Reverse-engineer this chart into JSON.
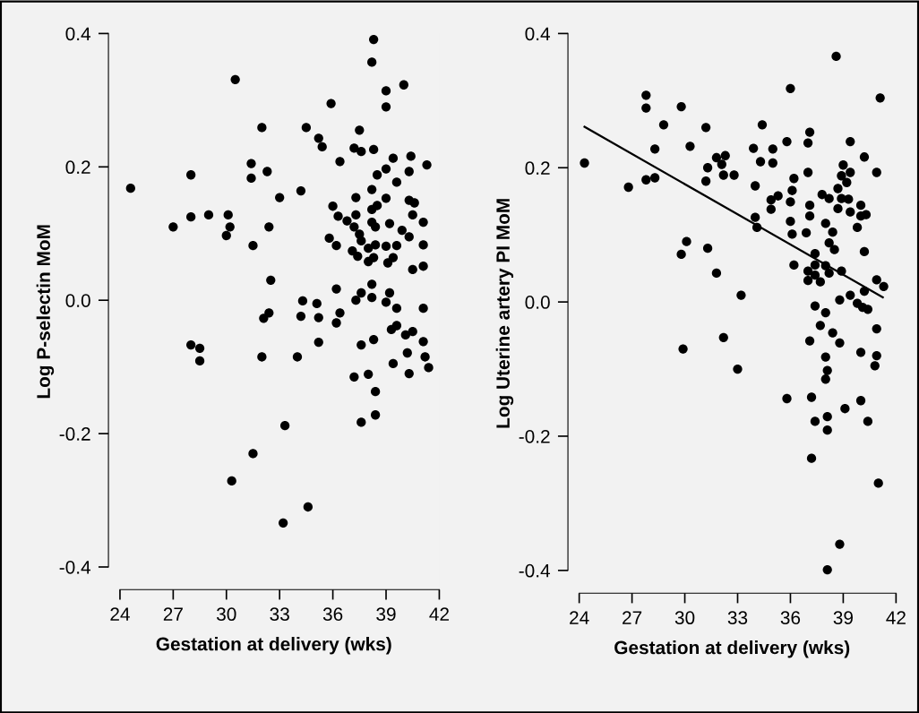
{
  "chart_data": [
    {
      "type": "scatter",
      "xlabel": "Gestation at delivery (wks)",
      "ylabel": "Log P-selectin MoM",
      "marker": "circle",
      "grid": false,
      "xlim": [
        23.35,
        42
      ],
      "ylim": [
        -0.434,
        0.4
      ],
      "xticks": [
        24,
        27,
        30,
        33,
        36,
        39,
        42
      ],
      "yticks": [
        {
          "value": -0.4,
          "label": "-0.4"
        },
        {
          "value": -0.2,
          "label": "-0.2"
        },
        {
          "value": 0,
          "label": "0.0"
        },
        {
          "value": 0.2,
          "label": "0.2"
        },
        {
          "value": 0.4,
          "label": "0.4"
        }
      ],
      "series": [
        {
          "color": "#000000",
          "x": [
            38.3,
            38.2,
            30.5,
            40.0,
            39.0,
            39.0,
            35.9,
            32.0,
            34.5,
            37.5,
            35.2,
            35.4,
            37.2,
            37.6,
            38.3,
            39.4,
            40.4,
            41.3,
            39.0,
            40.3,
            38.5,
            36.4,
            31.4,
            32.3,
            31.4,
            28.0,
            24.6,
            39.6,
            38.2,
            34.2,
            33.0,
            37.3,
            39.0,
            40.3,
            40.6,
            36.0,
            38.5,
            38.2,
            36.3,
            37.3,
            40.5,
            36.8,
            38.2,
            38.4,
            39.2,
            41.1,
            37.2,
            37.5,
            37.6,
            39.9,
            40.3,
            35.8,
            36.2,
            38.0,
            38.4,
            39.0,
            39.6,
            41.1,
            37.1,
            37.4,
            38.0,
            38.3,
            39.1,
            39.4,
            40.5,
            41.1,
            28.0,
            29.0,
            30.1,
            27.0,
            30.2,
            30.0,
            32.4,
            31.5,
            32.5,
            36.2,
            38.2,
            37.6,
            37.3,
            38.2,
            39.2,
            39.0,
            39.6,
            41.1,
            34.3,
            35.1,
            32.4,
            32.1,
            34.2,
            35.2,
            36.4,
            36.2,
            39.6,
            39.3,
            40.1,
            40.5,
            41.1,
            35.2,
            37.6,
            38.3,
            28.0,
            28.5,
            28.5,
            32.0,
            34.0,
            40.2,
            41.2,
            39.4,
            41.4,
            40.3,
            37.2,
            38.0,
            38.4,
            37.6,
            38.4,
            33.3,
            31.5,
            30.3,
            34.6,
            33.2
          ],
          "values": [
            0.391,
            0.357,
            0.331,
            0.323,
            0.314,
            0.29,
            0.295,
            0.259,
            0.259,
            0.255,
            0.243,
            0.23,
            0.228,
            0.223,
            0.226,
            0.213,
            0.216,
            0.203,
            0.197,
            0.193,
            0.188,
            0.208,
            0.205,
            0.193,
            0.183,
            0.188,
            0.168,
            0.177,
            0.166,
            0.164,
            0.154,
            0.154,
            0.153,
            0.15,
            0.146,
            0.141,
            0.142,
            0.136,
            0.126,
            0.128,
            0.128,
            0.119,
            0.117,
            0.11,
            0.115,
            0.117,
            0.11,
            0.099,
            0.089,
            0.105,
            0.095,
            0.093,
            0.082,
            0.078,
            0.083,
            0.081,
            0.082,
            0.083,
            0.074,
            0.066,
            0.058,
            0.064,
            0.056,
            0.064,
            0.046,
            0.051,
            0.125,
            0.128,
            0.128,
            0.11,
            0.11,
            0.097,
            0.11,
            0.082,
            0.03,
            0.017,
            0.024,
            0.011,
            0.0,
            0.004,
            0.011,
            -0.003,
            -0.012,
            -0.012,
            -0.001,
            -0.005,
            -0.019,
            -0.027,
            -0.024,
            -0.026,
            -0.019,
            -0.034,
            -0.038,
            -0.044,
            -0.052,
            -0.047,
            -0.062,
            -0.063,
            -0.067,
            -0.059,
            -0.067,
            -0.072,
            -0.091,
            -0.085,
            -0.085,
            -0.079,
            -0.085,
            -0.095,
            -0.101,
            -0.11,
            -0.115,
            -0.111,
            -0.137,
            -0.183,
            -0.172,
            -0.188,
            -0.23,
            -0.271,
            -0.31,
            -0.334
          ]
        }
      ]
    },
    {
      "type": "scatter",
      "xlabel": "Gestation at delivery (wks)",
      "ylabel": "Log Uterine artery PI MoM",
      "marker": "circle",
      "grid": false,
      "xlim": [
        23.36,
        42
      ],
      "ylim": [
        -0.434,
        0.4
      ],
      "xticks": [
        24,
        27,
        30,
        33,
        36,
        39,
        42
      ],
      "yticks": [
        {
          "value": -0.4,
          "label": "-0.4"
        },
        {
          "value": -0.2,
          "label": "-0.2"
        },
        {
          "value": 0,
          "label": "0.0"
        },
        {
          "value": 0.2,
          "label": "0.2"
        },
        {
          "value": 0.4,
          "label": "0.4"
        }
      ],
      "series": [
        {
          "color": "#000000",
          "x": [
            38.6,
            36.0,
            41.1,
            27.8,
            27.8,
            29.8,
            28.8,
            31.2,
            34.4,
            37.1,
            37.0,
            35.8,
            39.4,
            40.2,
            40.9,
            28.3,
            30.3,
            33.9,
            35.0,
            34.3,
            35.0,
            24.3,
            26.8,
            27.8,
            28.3,
            31.3,
            31.8,
            32.3,
            32.1,
            31.2,
            32.2,
            32.8,
            34.0,
            37.0,
            39.0,
            38.9,
            39.4,
            39.2,
            38.7,
            36.2,
            36.1,
            36.0,
            34.9,
            35.3,
            34.9,
            37.8,
            38.2,
            38.9,
            39.3,
            38.7,
            39.4,
            40.0,
            40.0,
            40.3,
            39.8,
            37.1,
            37.1,
            36.0,
            36.1,
            36.9,
            38.0,
            38.4,
            38.2,
            38.5,
            40.2,
            34.0,
            34.1,
            37.4,
            36.2,
            37.4,
            37.0,
            37.4,
            37.0,
            37.7,
            38.0,
            38.2,
            38.9,
            40.9,
            41.3,
            40.2,
            30.1,
            29.8,
            31.3,
            31.8,
            33.2,
            39.4,
            38.8,
            37.4,
            39.8,
            40.1,
            40.4,
            38.0,
            37.7,
            38.4,
            38.8,
            37.1,
            40.9,
            32.2,
            29.9,
            33.0,
            38.0,
            38.1,
            38.0,
            40.0,
            40.9,
            40.8,
            35.8,
            37.2,
            40.0,
            39.1,
            37.4,
            38.1,
            38.1,
            40.4,
            37.2,
            41.0,
            38.8,
            38.1
          ],
          "values": [
            0.366,
            0.318,
            0.304,
            0.308,
            0.289,
            0.291,
            0.264,
            0.26,
            0.264,
            0.253,
            0.237,
            0.239,
            0.239,
            0.216,
            0.193,
            0.228,
            0.232,
            0.229,
            0.228,
            0.209,
            0.207,
            0.207,
            0.171,
            0.182,
            0.185,
            0.2,
            0.215,
            0.218,
            0.205,
            0.18,
            0.189,
            0.189,
            0.173,
            0.193,
            0.204,
            0.188,
            0.193,
            0.178,
            0.169,
            0.184,
            0.166,
            0.149,
            0.152,
            0.158,
            0.138,
            0.16,
            0.154,
            0.154,
            0.153,
            0.139,
            0.134,
            0.144,
            0.128,
            0.13,
            0.111,
            0.144,
            0.128,
            0.12,
            0.101,
            0.103,
            0.117,
            0.104,
            0.088,
            0.078,
            0.075,
            0.126,
            0.111,
            0.072,
            0.055,
            0.055,
            0.046,
            0.04,
            0.032,
            0.03,
            0.054,
            0.043,
            0.046,
            0.033,
            0.023,
            0.016,
            0.09,
            0.071,
            0.08,
            0.043,
            0.01,
            0.01,
            0.003,
            -0.006,
            -0.002,
            -0.008,
            -0.011,
            -0.016,
            -0.035,
            -0.046,
            -0.061,
            -0.058,
            -0.04,
            -0.053,
            -0.07,
            -0.1,
            -0.082,
            -0.102,
            -0.115,
            -0.075,
            -0.08,
            -0.095,
            -0.144,
            -0.142,
            -0.147,
            -0.159,
            -0.178,
            -0.171,
            -0.191,
            -0.178,
            -0.233,
            -0.27,
            -0.361,
            -0.399
          ]
        },
        {
          "type": "line",
          "marker": "none",
          "color": "#000000",
          "x": [
            24.3,
            41.25
          ],
          "values": [
            0.261,
            0.007
          ]
        }
      ]
    }
  ]
}
